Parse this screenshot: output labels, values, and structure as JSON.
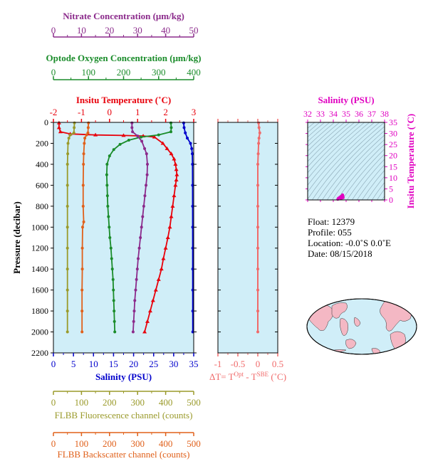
{
  "chart_data": [
    {
      "type": "line",
      "name": "profile",
      "y_axis": {
        "label": "Pressure (decibar)",
        "ylim": [
          0,
          2200
        ],
        "ticks": [
          0,
          200,
          400,
          600,
          800,
          1000,
          1200,
          1400,
          1600,
          1800,
          2000,
          2200
        ],
        "inverted": true
      },
      "axes": {
        "nitrate": {
          "label": "Nitrate Concentration (μm/kg)",
          "range": [
            0,
            50
          ],
          "ticks": [
            0,
            10,
            20,
            30,
            40,
            50
          ],
          "color": "#8b2a8b"
        },
        "oxygen": {
          "label": "Optode Oxygen Concentration (μm/kg)",
          "range": [
            0,
            400
          ],
          "ticks": [
            0,
            100,
            200,
            300,
            400
          ],
          "color": "#1a8c2a"
        },
        "temperature": {
          "label": "Insitu Temperature (˚C)",
          "range": [
            -2,
            3
          ],
          "ticks": [
            -2,
            -1,
            0,
            1,
            2,
            3
          ],
          "color": "#e8000b"
        },
        "salinity": {
          "label": "Salinity (PSU)",
          "range": [
            0,
            35
          ],
          "ticks": [
            0,
            5,
            10,
            15,
            20,
            25,
            30,
            35
          ],
          "color": "#0000cc"
        },
        "fluorescence": {
          "label": "FLBB Fluorescence channel (counts)",
          "range": [
            0,
            500
          ],
          "ticks": [
            0,
            100,
            200,
            300,
            400,
            500
          ],
          "color": "#9a9a2a"
        },
        "backscatter": {
          "label": "FLBB Backscatter channel (counts)",
          "range": [
            0,
            500
          ],
          "ticks": [
            0,
            100,
            200,
            300,
            400,
            500
          ],
          "color": "#e0601a"
        }
      },
      "series": [
        {
          "axis": "temperature",
          "color": "#e8000b",
          "marker": "triangle",
          "points": [
            [
              -1.8,
              5
            ],
            [
              -1.8,
              50
            ],
            [
              -1.75,
              90
            ],
            [
              -1.4,
              110
            ],
            [
              -0.5,
              120
            ],
            [
              0.5,
              125
            ],
            [
              1.2,
              130
            ],
            [
              1.6,
              140
            ],
            [
              1.9,
              200
            ],
            [
              2.05,
              250
            ],
            [
              2.2,
              300
            ],
            [
              2.3,
              350
            ],
            [
              2.35,
              400
            ],
            [
              2.38,
              450
            ],
            [
              2.4,
              500
            ],
            [
              2.38,
              550
            ],
            [
              2.35,
              600
            ],
            [
              2.3,
              700
            ],
            [
              2.25,
              800
            ],
            [
              2.2,
              900
            ],
            [
              2.15,
              1000
            ],
            [
              2.08,
              1100
            ],
            [
              2.0,
              1200
            ],
            [
              1.92,
              1300
            ],
            [
              1.85,
              1400
            ],
            [
              1.75,
              1500
            ],
            [
              1.65,
              1600
            ],
            [
              1.55,
              1700
            ],
            [
              1.45,
              1800
            ],
            [
              1.35,
              1900
            ],
            [
              1.25,
              2000
            ]
          ]
        },
        {
          "axis": "salinity",
          "color": "#0000cc",
          "marker": "dot",
          "points": [
            [
              32.5,
              5
            ],
            [
              32.6,
              50
            ],
            [
              32.9,
              100
            ],
            [
              33.4,
              150
            ],
            [
              34.2,
              200
            ],
            [
              34.5,
              250
            ],
            [
              34.65,
              300
            ],
            [
              34.7,
              400
            ],
            [
              34.72,
              600
            ],
            [
              34.73,
              800
            ],
            [
              34.74,
              1000
            ],
            [
              34.75,
              1200
            ],
            [
              34.75,
              1400
            ],
            [
              34.76,
              1600
            ],
            [
              34.76,
              1800
            ],
            [
              34.77,
              2000
            ]
          ]
        },
        {
          "axis": "oxygen",
          "color": "#1a8c2a",
          "marker": "dot",
          "points": [
            [
              335,
              5
            ],
            [
              336,
              50
            ],
            [
              335,
              90
            ],
            [
              300,
              120
            ],
            [
              250,
              140
            ],
            [
              215,
              170
            ],
            [
              190,
              210
            ],
            [
              172,
              260
            ],
            [
              160,
              320
            ],
            [
              153,
              400
            ],
            [
              152,
              500
            ],
            [
              153,
              600
            ],
            [
              154,
              700
            ],
            [
              155,
              800
            ],
            [
              157,
              900
            ],
            [
              159,
              1000
            ],
            [
              161,
              1100
            ],
            [
              164,
              1200
            ],
            [
              166,
              1300
            ],
            [
              168,
              1400
            ],
            [
              170,
              1500
            ],
            [
              171,
              1600
            ],
            [
              172,
              1700
            ],
            [
              173,
              1800
            ],
            [
              174,
              1900
            ],
            [
              175,
              2000
            ]
          ]
        },
        {
          "axis": "nitrate",
          "color": "#8b2a8b",
          "marker": "dot",
          "points": [
            [
              28,
              5
            ],
            [
              28,
              50
            ],
            [
              28.2,
              90
            ],
            [
              30,
              130
            ],
            [
              31.5,
              180
            ],
            [
              32.5,
              250
            ],
            [
              33.2,
              300
            ],
            [
              33.5,
              400
            ],
            [
              33.4,
              500
            ],
            [
              33.0,
              600
            ],
            [
              32.6,
              700
            ],
            [
              32.2,
              800
            ],
            [
              31.8,
              900
            ],
            [
              31.4,
              1000
            ],
            [
              31.0,
              1100
            ],
            [
              30.6,
              1200
            ],
            [
              30.2,
              1300
            ],
            [
              29.9,
              1400
            ],
            [
              29.6,
              1500
            ],
            [
              29.3,
              1600
            ],
            [
              29.0,
              1700
            ],
            [
              28.8,
              1800
            ],
            [
              28.6,
              1900
            ],
            [
              28.4,
              2000
            ]
          ]
        },
        {
          "axis": "fluorescence",
          "color": "#9a9a2a",
          "marker": "dot",
          "points": [
            [
              75,
              5
            ],
            [
              74,
              50
            ],
            [
              73,
              100
            ],
            [
              60,
              120
            ],
            [
              55,
              150
            ],
            [
              52,
              200
            ],
            [
              51,
              300
            ],
            [
              50,
              400
            ],
            [
              50,
              600
            ],
            [
              50,
              800
            ],
            [
              50,
              1000
            ],
            [
              50,
              1200
            ],
            [
              50,
              1400
            ],
            [
              50,
              1600
            ],
            [
              50,
              1800
            ],
            [
              50,
              2000
            ]
          ]
        },
        {
          "axis": "backscatter",
          "color": "#e0601a",
          "marker": "dot",
          "points": [
            [
              125,
              5
            ],
            [
              124,
              50
            ],
            [
              123,
              100
            ],
            [
              118,
              120
            ],
            [
              112,
              150
            ],
            [
              110,
              200
            ],
            [
              108,
              300
            ],
            [
              107,
              400
            ],
            [
              106,
              600
            ],
            [
              106,
              800
            ],
            [
              108,
              950
            ],
            [
              104,
              1000
            ],
            [
              103,
              1200
            ],
            [
              103,
              1400
            ],
            [
              102,
              1600
            ],
            [
              102,
              1800
            ],
            [
              102,
              2000
            ]
          ]
        }
      ]
    },
    {
      "type": "line",
      "name": "delta_t",
      "x_axis": {
        "label": "ΔT= T",
        "label_sup1": "Opt",
        "label_mid": " - T",
        "label_sup2": "SBE",
        "label_tail": " (˚C)",
        "range": [
          -1.0,
          0.5
        ],
        "ticks": [
          -1.0,
          -0.5,
          0.0,
          0.5
        ],
        "color": "#f06a6a"
      },
      "series": [
        {
          "color": "#f06a6a",
          "marker": "dot",
          "points": [
            [
              0.02,
              5
            ],
            [
              0.03,
              50
            ],
            [
              0.05,
              100
            ],
            [
              0.03,
              150
            ],
            [
              0.02,
              200
            ],
            [
              0.01,
              300
            ],
            [
              0.0,
              400
            ],
            [
              0.0,
              600
            ],
            [
              0.0,
              800
            ],
            [
              0.0,
              1000
            ],
            [
              0.0,
              1200
            ],
            [
              0.0,
              1400
            ],
            [
              0.0,
              1600
            ],
            [
              0.0,
              1800
            ],
            [
              0.0,
              2000
            ]
          ]
        }
      ]
    },
    {
      "type": "scatter",
      "name": "ts_diagram",
      "x_axis": {
        "label": "Salinity (PSU)",
        "range": [
          32,
          38
        ],
        "ticks": [
          32,
          33,
          34,
          35,
          36,
          37,
          38
        ]
      },
      "y_axis": {
        "label": "Insitu Temperature (˚C)",
        "range": [
          0,
          35
        ],
        "ticks": [
          0,
          5,
          10,
          15,
          20,
          25,
          30,
          35
        ]
      },
      "series": [
        {
          "color": "#e000c0",
          "points": [
            [
              34.35,
              0.3
            ],
            [
              34.4,
              0.8
            ],
            [
              34.5,
              1.2
            ],
            [
              34.6,
              1.6
            ],
            [
              34.7,
              2.0
            ],
            [
              34.72,
              2.3
            ],
            [
              34.74,
              2.1
            ],
            [
              34.76,
              1.5
            ],
            [
              34.77,
              1.0
            ],
            [
              34.6,
              0.5
            ]
          ]
        }
      ]
    }
  ],
  "info": {
    "float": "Float:  12379",
    "profile": "Profile:  055",
    "location": "Location:  -0.0˚S   0.0˚E",
    "date": "Date:  08/15/2018"
  },
  "colors": {
    "plot_bg": "#d0eef8",
    "land": "#f4b8c4",
    "ocean": "#d0eef8"
  }
}
